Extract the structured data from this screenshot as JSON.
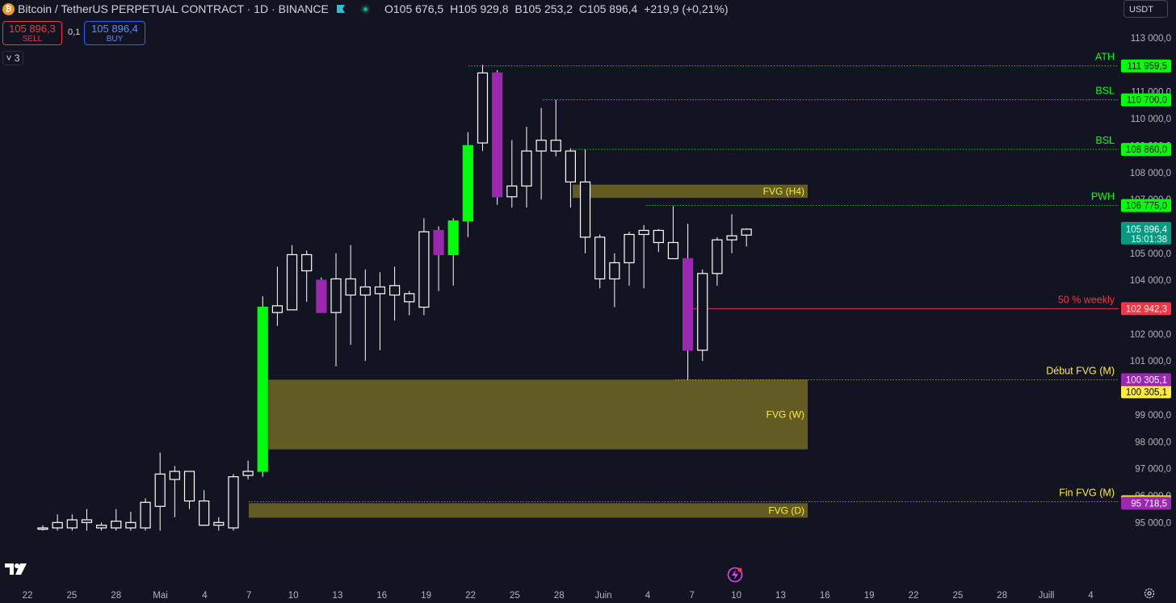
{
  "header": {
    "title": "Bitcoin / TetherUS PERPETUAL CONTRACT · 1D · BINANCE",
    "coin_icon": "bitcoin-icon",
    "ohlc": {
      "open_label": "O",
      "open": "105 676,5",
      "high_label": "H",
      "high": "105 929,8",
      "low_label": "B",
      "low": "105 253,2",
      "close_label": "C",
      "close": "105 896,4",
      "change": "+219,9 (+0,21%)"
    },
    "currency": "USDT"
  },
  "trade": {
    "sell_price": "105 896,3",
    "sell_label": "SELL",
    "spread": "0,1",
    "buy_price": "105 896,4",
    "buy_label": "BUY"
  },
  "indicators_collapsed_count": "3",
  "colors": {
    "background": "#121521",
    "candle_white": "#ffffff",
    "candle_green": "#00ff0a",
    "candle_purple": "#9c27b0",
    "fvg_fill": "#6b6324",
    "level_green": "#00ff0a",
    "level_red": "#f23645",
    "fvg_text": "#ffeb3b",
    "last_price": "#089981"
  },
  "chart_data": {
    "type": "candlestick",
    "title": "",
    "xlabel": "",
    "ylabel": "",
    "y_axis": {
      "ylim": [
        94700,
        113900
      ],
      "ticks": [
        "113 000,0",
        "112 000,0",
        "111 000,0",
        "110 000,0",
        "109 000,0",
        "108 000,0",
        "107 000,0",
        "106 000,0",
        "105 000,0",
        "104 000,0",
        "103 000,0",
        "102 000,0",
        "101 000,0",
        "100 000,0",
        "99 000,0",
        "98 000,0",
        "97 000,0",
        "96 000,0",
        "95 000,0"
      ]
    },
    "x_axis": {
      "ticks": [
        "22",
        "25",
        "28",
        "Mai",
        "4",
        "7",
        "10",
        "13",
        "16",
        "19",
        "22",
        "25",
        "28",
        "Juin",
        "4",
        "7",
        "10",
        "13",
        "16",
        "19",
        "22",
        "25",
        "28",
        "Juill",
        "4"
      ]
    },
    "candles": [
      {
        "o": 94800,
        "h": 94900,
        "l": 94700,
        "c": 94750,
        "t": "w"
      },
      {
        "o": 95000,
        "h": 95300,
        "l": 94700,
        "c": 94800,
        "t": "w"
      },
      {
        "o": 94800,
        "h": 95300,
        "l": 94700,
        "c": 95100,
        "t": "w"
      },
      {
        "o": 95100,
        "h": 95500,
        "l": 94700,
        "c": 95000,
        "t": "w"
      },
      {
        "o": 94900,
        "h": 95000,
        "l": 94700,
        "c": 94800,
        "t": "w"
      },
      {
        "o": 94800,
        "h": 95500,
        "l": 94700,
        "c": 95050,
        "t": "w"
      },
      {
        "o": 95000,
        "h": 95400,
        "l": 94700,
        "c": 94800,
        "t": "w"
      },
      {
        "o": 94800,
        "h": 95900,
        "l": 94700,
        "c": 95750,
        "t": "w"
      },
      {
        "o": 95600,
        "h": 97600,
        "l": 94700,
        "c": 96800,
        "t": "w"
      },
      {
        "o": 96600,
        "h": 97100,
        "l": 95200,
        "c": 96900,
        "t": "w"
      },
      {
        "o": 96900,
        "h": 96900,
        "l": 95500,
        "c": 95800,
        "t": "w"
      },
      {
        "o": 95800,
        "h": 96200,
        "l": 95000,
        "c": 94900,
        "t": "w"
      },
      {
        "o": 94900,
        "h": 95200,
        "l": 94700,
        "c": 95000,
        "t": "w"
      },
      {
        "o": 94800,
        "h": 96800,
        "l": 94700,
        "c": 96700,
        "t": "w"
      },
      {
        "o": 96750,
        "h": 97300,
        "l": 96600,
        "c": 96900,
        "t": "w"
      },
      {
        "o": 96900,
        "h": 103400,
        "l": 96700,
        "c": 103000,
        "t": "g"
      },
      {
        "o": 102800,
        "h": 104500,
        "l": 102300,
        "c": 103050,
        "t": "w"
      },
      {
        "o": 102900,
        "h": 105300,
        "l": 102900,
        "c": 104950,
        "t": "w"
      },
      {
        "o": 104950,
        "h": 105100,
        "l": 103200,
        "c": 104350,
        "t": "w"
      },
      {
        "o": 104000,
        "h": 104100,
        "l": 102900,
        "c": 102800,
        "t": "p"
      },
      {
        "o": 102800,
        "h": 105000,
        "l": 100800,
        "c": 104050,
        "t": "w"
      },
      {
        "o": 104050,
        "h": 105300,
        "l": 101600,
        "c": 103450,
        "t": "w"
      },
      {
        "o": 103450,
        "h": 104400,
        "l": 101000,
        "c": 103750,
        "t": "w"
      },
      {
        "o": 103750,
        "h": 104300,
        "l": 101400,
        "c": 103500,
        "t": "w"
      },
      {
        "o": 103450,
        "h": 104500,
        "l": 102500,
        "c": 103800,
        "t": "w"
      },
      {
        "o": 103500,
        "h": 103600,
        "l": 102700,
        "c": 103200,
        "t": "w"
      },
      {
        "o": 103000,
        "h": 106300,
        "l": 102700,
        "c": 105800,
        "t": "w"
      },
      {
        "o": 105850,
        "h": 106000,
        "l": 103600,
        "c": 104950,
        "t": "p"
      },
      {
        "o": 104950,
        "h": 106300,
        "l": 103800,
        "c": 106200,
        "t": "g"
      },
      {
        "o": 106200,
        "h": 109500,
        "l": 105600,
        "c": 109000,
        "t": "g"
      },
      {
        "o": 109100,
        "h": 112000,
        "l": 108800,
        "c": 111700,
        "t": "w"
      },
      {
        "o": 111700,
        "h": 111800,
        "l": 106800,
        "c": 107100,
        "t": "p"
      },
      {
        "o": 107100,
        "h": 109200,
        "l": 106700,
        "c": 107500,
        "t": "w"
      },
      {
        "o": 107500,
        "h": 109700,
        "l": 106700,
        "c": 108800,
        "t": "w"
      },
      {
        "o": 108800,
        "h": 110400,
        "l": 107000,
        "c": 109200,
        "t": "w"
      },
      {
        "o": 109200,
        "h": 110700,
        "l": 108600,
        "c": 108800,
        "t": "w"
      },
      {
        "o": 108800,
        "h": 108900,
        "l": 106700,
        "c": 107650,
        "t": "w"
      },
      {
        "o": 107650,
        "h": 108850,
        "l": 105000,
        "c": 105600,
        "t": "w"
      },
      {
        "o": 105600,
        "h": 105700,
        "l": 103700,
        "c": 104050,
        "t": "w"
      },
      {
        "o": 104050,
        "h": 105000,
        "l": 103000,
        "c": 104650,
        "t": "w"
      },
      {
        "o": 104650,
        "h": 105800,
        "l": 103800,
        "c": 105700,
        "t": "w"
      },
      {
        "o": 105700,
        "h": 106050,
        "l": 103700,
        "c": 105850,
        "t": "w"
      },
      {
        "o": 105850,
        "h": 105900,
        "l": 105050,
        "c": 105400,
        "t": "w"
      },
      {
        "o": 105400,
        "h": 106750,
        "l": 104800,
        "c": 104800,
        "t": "w"
      },
      {
        "o": 104800,
        "h": 106100,
        "l": 100300,
        "c": 101400,
        "t": "p"
      },
      {
        "o": 101400,
        "h": 104400,
        "l": 101000,
        "c": 104250,
        "t": "w"
      },
      {
        "o": 104250,
        "h": 105600,
        "l": 103800,
        "c": 105500,
        "t": "w"
      },
      {
        "o": 105500,
        "h": 106450,
        "l": 105000,
        "c": 105650,
        "t": "w"
      },
      {
        "o": 105676.5,
        "h": 105929.8,
        "l": 105253.2,
        "c": 105896.4,
        "t": "w"
      }
    ],
    "zones": [
      {
        "label": "FVG (H4)",
        "top": 107550,
        "bottom": 107060
      },
      {
        "label": "FVG (W)",
        "top": 100305.1,
        "bottom": 97715
      },
      {
        "label": "FVG (D)",
        "top": 95718.5,
        "bottom": 95180
      }
    ],
    "levels": [
      {
        "label": "ATH",
        "value": 111959.5,
        "price": "111 959,5",
        "kind": "green"
      },
      {
        "label": "BSL",
        "value": 110700,
        "price": "110 700,0",
        "kind": "green"
      },
      {
        "label": "BSL",
        "value": 108860,
        "price": "108 860,0",
        "kind": "green"
      },
      {
        "label": "PWH",
        "value": 106775,
        "price": "106 775,0",
        "kind": "green"
      },
      {
        "label": "50 % weekly",
        "value": 102942.3,
        "price": "102 942,3",
        "kind": "red"
      },
      {
        "label": "Début FVG (M)",
        "value": 100305.1,
        "price": "100 305,1",
        "kind": "yellow"
      },
      {
        "label": "Fin FVG (M)",
        "value": 95769,
        "price": "95 769,0",
        "kind": "yellow"
      }
    ],
    "axis_tags": [
      {
        "value": 100305.1,
        "price": "100 305,1",
        "kind": "purple"
      },
      {
        "value": 95718.5,
        "price": "95 718,5",
        "kind": "purple"
      }
    ],
    "last_price": {
      "value": 105896.4,
      "price": "105 896,4",
      "countdown": "15:01:38"
    }
  }
}
